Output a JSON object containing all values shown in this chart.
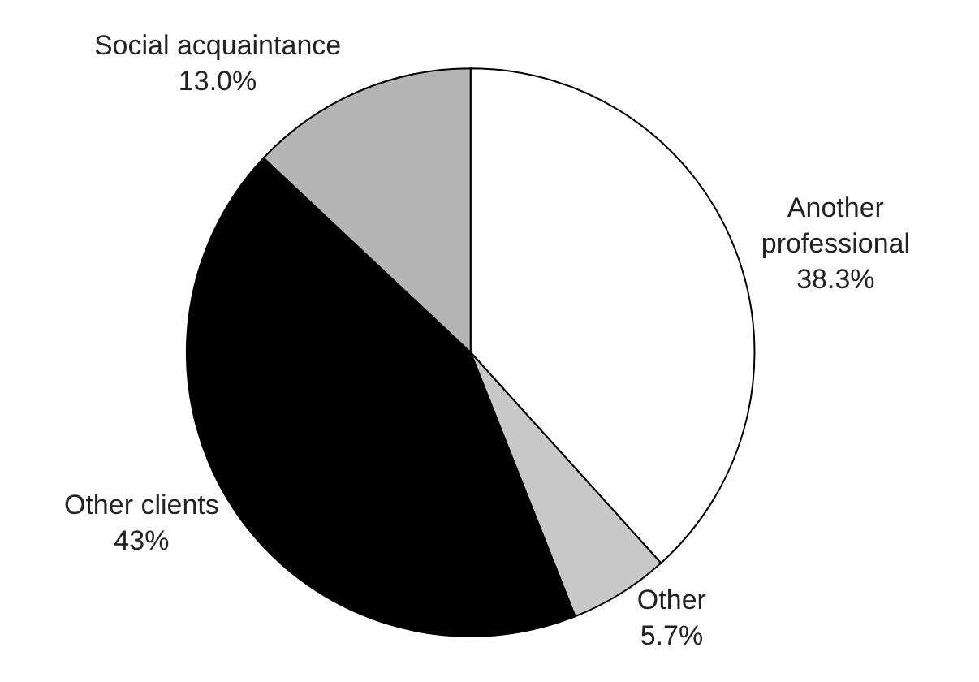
{
  "chart_data": {
    "type": "pie",
    "categories": [
      "Another professional",
      "Other",
      "Other clients",
      "Social acquaintance"
    ],
    "values": [
      38.3,
      5.7,
      43,
      13.0
    ],
    "value_labels": [
      "38.3%",
      "5.7%",
      "43%",
      "13.0%"
    ],
    "colors": [
      "#ffffff",
      "#c8c8c8",
      "#000000",
      "#b4b4b4"
    ],
    "legend": false
  }
}
